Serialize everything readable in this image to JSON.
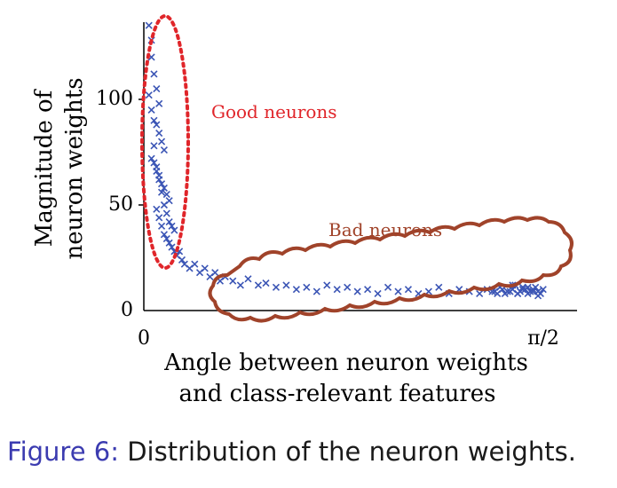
{
  "chart_data": {
    "type": "scatter",
    "xlabel_lines": [
      "Angle between neuron weights",
      "and class-relevant features"
    ],
    "ylabel_lines": [
      "Magnitude of",
      "neuron weights"
    ],
    "x_tick_labels": [
      "0",
      "π/2"
    ],
    "y_ticks": [
      0,
      50,
      100
    ],
    "xlim": [
      0,
      1.5708
    ],
    "ylim": [
      0,
      135
    ],
    "marker": "x",
    "marker_color": "#3b55b5",
    "annotations": [
      {
        "text": "Good neurons",
        "color": "#e0252a",
        "shape": "dotted-ellipse"
      },
      {
        "text": "Bad neurons",
        "color": "#a0432a",
        "shape": "cloud"
      }
    ],
    "series": [
      {
        "x": [
          0.02,
          0.03,
          0.03,
          0.04,
          0.05,
          0.06,
          0.02,
          0.03,
          0.04,
          0.05,
          0.06,
          0.07,
          0.08,
          0.03,
          0.04,
          0.05,
          0.06,
          0.07,
          0.08,
          0.09,
          0.1,
          0.04,
          0.05,
          0.06,
          0.07,
          0.08,
          0.09,
          0.1,
          0.11,
          0.12,
          0.05,
          0.06,
          0.07,
          0.08,
          0.09,
          0.1,
          0.11,
          0.12,
          0.13,
          0.14,
          0.15,
          0.16,
          0.18,
          0.2,
          0.22,
          0.24,
          0.26,
          0.28,
          0.3,
          0.32,
          0.35,
          0.38,
          0.41,
          0.45,
          0.48,
          0.52,
          0.56,
          0.6,
          0.64,
          0.68,
          0.72,
          0.76,
          0.8,
          0.84,
          0.88,
          0.92,
          0.96,
          1.0,
          1.04,
          1.08,
          1.12,
          1.16,
          1.2,
          1.24,
          1.28,
          1.32,
          1.35,
          1.38,
          1.4,
          1.42,
          1.44,
          1.45,
          1.46,
          1.47,
          1.48,
          1.49,
          1.5,
          1.51,
          1.52,
          1.53,
          1.54,
          1.55,
          1.56,
          1.57,
          1.55,
          1.53,
          1.51,
          1.49,
          1.47,
          1.45,
          1.43,
          1.41,
          1.39,
          1.37
        ],
        "y": [
          135,
          128,
          120,
          112,
          105,
          98,
          102,
          95,
          90,
          88,
          84,
          80,
          76,
          72,
          70,
          66,
          64,
          60,
          58,
          55,
          52,
          78,
          68,
          62,
          56,
          50,
          46,
          42,
          40,
          38,
          48,
          44,
          40,
          36,
          34,
          32,
          30,
          28,
          26,
          28,
          24,
          22,
          20,
          22,
          18,
          20,
          16,
          18,
          14,
          16,
          14,
          12,
          15,
          12,
          13,
          11,
          12,
          10,
          11,
          9,
          12,
          10,
          11,
          9,
          10,
          8,
          11,
          9,
          10,
          8,
          9,
          11,
          8,
          10,
          9,
          8,
          10,
          9,
          11,
          8,
          9,
          10,
          12,
          8,
          9,
          11,
          10,
          8,
          9,
          10,
          11,
          9,
          8,
          10,
          7,
          9,
          11,
          10,
          8,
          12,
          9,
          10,
          8,
          9
        ]
      }
    ]
  },
  "caption": {
    "figure_label": "Figure 6:",
    "text": " Distribution of the neuron weights."
  }
}
